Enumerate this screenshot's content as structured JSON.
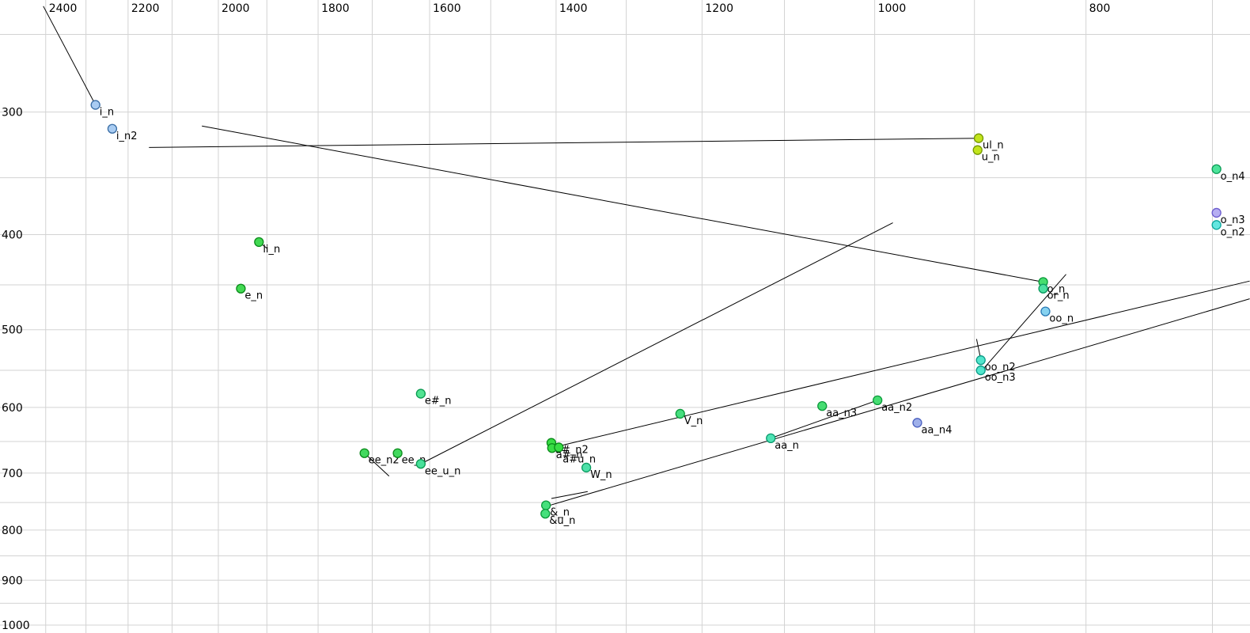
{
  "chart_data": {
    "type": "scatter",
    "title": "",
    "x_axis": {
      "position": "top",
      "scale": "log",
      "direction": "reversed",
      "tick_labels": [
        2400,
        2200,
        2000,
        1800,
        1600,
        1400,
        1200,
        1000,
        800
      ],
      "gridlines": [
        2400,
        2300,
        2200,
        2100,
        2000,
        1900,
        1800,
        1700,
        1600,
        1500,
        1400,
        1300,
        1200,
        1100,
        1000,
        900,
        800,
        700
      ]
    },
    "y_axis": {
      "position": "left",
      "scale": "log",
      "direction": "down",
      "tick_labels": [
        300,
        400,
        500,
        600,
        700,
        800,
        900,
        1000
      ],
      "gridlines": [
        250,
        300,
        350,
        400,
        450,
        500,
        550,
        600,
        650,
        700,
        750,
        800,
        850,
        900,
        950,
        1000
      ]
    },
    "colors": {
      "background": "#ffffff",
      "gridline": "#d3d3d3",
      "trajectory": "#000000",
      "text": "#000000"
    },
    "points": [
      {
        "label": "i_n",
        "f2": 2277,
        "f1": 295,
        "fill": "#a9ccf2",
        "stroke": "#3a6ea5"
      },
      {
        "label": "i_n2",
        "f2": 2237,
        "f1": 312,
        "fill": "#a9ccf2",
        "stroke": "#3a6ea5"
      },
      {
        "label": "ul_n",
        "f2": 896,
        "f1": 319,
        "fill": "#c2e41c",
        "stroke": "#739700"
      },
      {
        "label": "u_n",
        "f2": 897,
        "f1": 328,
        "fill": "#c2e41c",
        "stroke": "#739700"
      },
      {
        "label": "o_n4",
        "f2": 697,
        "f1": 343,
        "fill": "#4ce39a",
        "stroke": "#0b9a55"
      },
      {
        "label": "o_n3",
        "f2": 697,
        "f1": 380,
        "fill": "#b6aef2",
        "stroke": "#6a5acd"
      },
      {
        "label": "o_n2",
        "f2": 697,
        "f1": 391,
        "fill": "#64e6e0",
        "stroke": "#0aa59a"
      },
      {
        "label": "ii_n",
        "f2": 1916,
        "f1": 407,
        "fill": "#42d952",
        "stroke": "#0a8a1a"
      },
      {
        "label": "e_n",
        "f2": 1953,
        "f1": 454,
        "fill": "#42d952",
        "stroke": "#0a8a1a"
      },
      {
        "label": "o_n",
        "f2": 837,
        "f1": 447,
        "fill": "#46dd6e",
        "stroke": "#0a9a3a"
      },
      {
        "label": "or_n",
        "f2": 837,
        "f1": 454,
        "fill": "#4ce0a0",
        "stroke": "#0a9a60"
      },
      {
        "label": "oo_n",
        "f2": 835,
        "f1": 479,
        "fill": "#86d2f0",
        "stroke": "#2a7ab5"
      },
      {
        "label": "oo_n2",
        "f2": 894,
        "f1": 537,
        "fill": "#52e6cc",
        "stroke": "#0a9a86"
      },
      {
        "label": "oo_n3",
        "f2": 894,
        "f1": 550,
        "fill": "#52e6cc",
        "stroke": "#0a9a86"
      },
      {
        "label": "e#_n",
        "f2": 1615,
        "f1": 581,
        "fill": "#52e392",
        "stroke": "#0a9a50"
      },
      {
        "label": "V_n",
        "f2": 1228,
        "f1": 609,
        "fill": "#46dd7e",
        "stroke": "#0a9a3a"
      },
      {
        "label": "aa_n3",
        "f2": 1057,
        "f1": 598,
        "fill": "#46dd72",
        "stroke": "#0a9a3a"
      },
      {
        "label": "aa_n2",
        "f2": 997,
        "f1": 590,
        "fill": "#46dd72",
        "stroke": "#0a9a3a"
      },
      {
        "label": "aa_n4",
        "f2": 956,
        "f1": 622,
        "fill": "#9fb0ea",
        "stroke": "#4a5fbf"
      },
      {
        "label": "aa_n",
        "f2": 1116,
        "f1": 645,
        "fill": "#4ee3b4",
        "stroke": "#0a9a6e"
      },
      {
        "label": "ee_n2",
        "f2": 1714,
        "f1": 668,
        "fill": "#42d95e",
        "stroke": "#0a8a1a"
      },
      {
        "label": "ee_n",
        "f2": 1655,
        "f1": 668,
        "fill": "#42d95e",
        "stroke": "#0a8a1a"
      },
      {
        "label": "ee_u_n",
        "f2": 1615,
        "f1": 685,
        "fill": "#48e09a",
        "stroke": "#0a9a50"
      },
      {
        "label": "a#_n2",
        "f2": 1407,
        "f1": 652,
        "fill": "#38dd44",
        "stroke": "#0a8a1a"
      },
      {
        "label": "a#_n",
        "f2": 1406,
        "f1": 660,
        "fill": "#38dd44",
        "stroke": "#0a8a1a"
      },
      {
        "label": "a#u_n",
        "f2": 1396,
        "f1": 659,
        "fill": "#38dd44",
        "stroke": "#0a8a1a",
        "label_dy": 19
      },
      {
        "label": "W_n",
        "f2": 1356,
        "f1": 691,
        "fill": "#4ee0a8",
        "stroke": "#0a9a60"
      },
      {
        "label": "&_n",
        "f2": 1415,
        "f1": 755,
        "fill": "#46e07c",
        "stroke": "#0a9a3a"
      },
      {
        "label": "&u_n",
        "f2": 1416,
        "f1": 770,
        "fill": "#46e07c",
        "stroke": "#0a9a3a"
      }
    ],
    "segments": [
      {
        "from": [
          2406,
          234
        ],
        "to": [
          2277,
          295
        ]
      },
      {
        "from": [
          2152,
          326
        ],
        "to": [
          896,
          319
        ]
      },
      {
        "from": [
          2035,
          310
        ],
        "to": [
          837,
          447
        ]
      },
      {
        "from": [
          1615,
          685
        ],
        "to": [
          981,
          389
        ]
      },
      {
        "from": [
          1714,
          668
        ],
        "to": [
          1670,
          705
        ]
      },
      {
        "from": [
          1916,
          407
        ],
        "to": [
          1900,
          413
        ]
      },
      {
        "from": [
          1396,
          657
        ],
        "to": [
          673,
          446
        ]
      },
      {
        "from": [
          1415,
          757
        ],
        "to": [
          673,
          465
        ]
      },
      {
        "from": [
          1407,
          743
        ],
        "to": [
          1354,
          731
        ]
      },
      {
        "from": [
          1116,
          645
        ],
        "to": [
          997,
          590
        ]
      },
      {
        "from": [
          896,
          555
        ],
        "to": [
          817,
          439
        ]
      },
      {
        "from": [
          898,
          511
        ],
        "to": [
          894,
          536
        ]
      }
    ]
  }
}
